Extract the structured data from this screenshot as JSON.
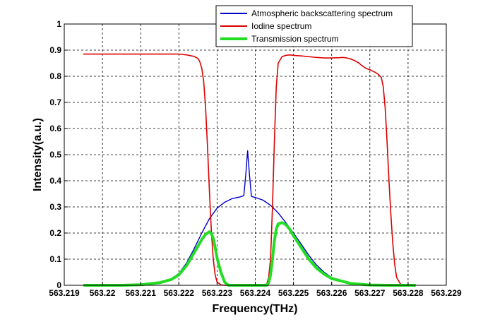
{
  "chart_data": {
    "type": "line",
    "title": "",
    "xlabel": "Frequency(THz)",
    "ylabel": "Intensity(a.u.)",
    "xlim": [
      563.219,
      563.229
    ],
    "ylim": [
      0,
      1
    ],
    "x_ticks": [
      "563.219",
      "563.22",
      "563.221",
      "563.222",
      "563.223",
      "563.224",
      "563.225",
      "563.226",
      "563.227",
      "563.228",
      "563.229"
    ],
    "y_ticks": [
      "0",
      "0.1",
      "0.2",
      "0.3",
      "0.4",
      "0.5",
      "0.6",
      "0.7",
      "0.8",
      "0.9",
      "1"
    ],
    "grid": true,
    "legend_position": "top-right",
    "series": [
      {
        "name": "Atmospheric backscattering spectrum",
        "color": "#0000cc",
        "x": [
          563.2195,
          563.2205,
          563.221,
          563.2215,
          563.2218,
          563.222,
          563.2222,
          563.2224,
          563.2226,
          563.2228,
          563.223,
          563.2232,
          563.2234,
          563.2236,
          563.2237,
          563.22375,
          563.2238,
          563.22385,
          563.2239,
          563.224,
          563.2242,
          563.2244,
          563.2246,
          563.2248,
          563.225,
          563.2252,
          563.2254,
          563.2256,
          563.2258,
          563.226,
          563.2265,
          563.227,
          563.2275,
          563.228
        ],
        "y": [
          0,
          0,
          0.002,
          0.01,
          0.025,
          0.045,
          0.085,
          0.14,
          0.2,
          0.255,
          0.295,
          0.318,
          0.332,
          0.338,
          0.343,
          0.42,
          0.515,
          0.42,
          0.34,
          0.336,
          0.326,
          0.306,
          0.277,
          0.24,
          0.2,
          0.158,
          0.115,
          0.078,
          0.05,
          0.03,
          0.008,
          0.002,
          0,
          0
        ]
      },
      {
        "name": "Iodine spectrum",
        "color": "#dd0000",
        "x": [
          563.2195,
          563.22,
          563.221,
          563.222,
          563.2222,
          563.2224,
          563.2225,
          563.22255,
          563.2226,
          563.22265,
          563.2227,
          563.22275,
          563.2228,
          563.22285,
          563.2229,
          563.22295,
          563.223,
          563.2231,
          563.2232,
          563.2234,
          563.2236,
          563.2238,
          563.224,
          563.2242,
          563.2243,
          563.22435,
          563.2244,
          563.22445,
          563.2245,
          563.22455,
          563.2246,
          563.2247,
          563.2248,
          563.2249,
          563.225,
          563.2252,
          563.2254,
          563.2256,
          563.2258,
          563.226,
          563.2262,
          563.2263,
          563.2264,
          563.2265,
          563.2266,
          563.2267,
          563.2268,
          563.2269,
          563.227,
          563.2271,
          563.2272,
          563.2273,
          563.22735,
          563.2274,
          563.22745,
          563.2275,
          563.22755,
          563.2276,
          563.22765,
          563.2277,
          563.2278,
          563.22785
        ],
        "y": [
          0.885,
          0.885,
          0.885,
          0.885,
          0.882,
          0.876,
          0.868,
          0.855,
          0.83,
          0.78,
          0.68,
          0.53,
          0.36,
          0.21,
          0.1,
          0.04,
          0.012,
          0.002,
          0,
          0,
          0,
          0,
          0,
          0,
          0.005,
          0.03,
          0.1,
          0.3,
          0.55,
          0.76,
          0.85,
          0.875,
          0.88,
          0.882,
          0.88,
          0.878,
          0.875,
          0.872,
          0.87,
          0.87,
          0.871,
          0.872,
          0.87,
          0.866,
          0.86,
          0.852,
          0.84,
          0.83,
          0.825,
          0.818,
          0.81,
          0.795,
          0.76,
          0.68,
          0.55,
          0.4,
          0.27,
          0.16,
          0.08,
          0.03,
          0.005,
          0
        ]
      },
      {
        "name": "Transmission spectrum",
        "color": "#22dd22",
        "x": [
          563.2195,
          563.2205,
          563.221,
          563.2215,
          563.2218,
          563.222,
          563.2222,
          563.2224,
          563.2226,
          563.2227,
          563.2228,
          563.22285,
          563.2229,
          563.22295,
          563.223,
          563.2231,
          563.2232,
          563.2233,
          563.224,
          563.2243,
          563.22435,
          563.2244,
          563.22445,
          563.2245,
          563.22455,
          563.2246,
          563.2247,
          563.2248,
          563.2249,
          563.225,
          563.2252,
          563.2254,
          563.2256,
          563.2258,
          563.226,
          563.2265,
          563.227,
          563.2275,
          563.228,
          563.2282
        ],
        "y": [
          0,
          0,
          0.002,
          0.01,
          0.022,
          0.04,
          0.075,
          0.125,
          0.175,
          0.195,
          0.205,
          0.198,
          0.18,
          0.145,
          0.105,
          0.05,
          0.012,
          0,
          0,
          0,
          0.01,
          0.04,
          0.1,
          0.17,
          0.215,
          0.235,
          0.24,
          0.232,
          0.215,
          0.19,
          0.145,
          0.1,
          0.066,
          0.043,
          0.026,
          0.007,
          0.001,
          0,
          0,
          0
        ]
      }
    ]
  }
}
